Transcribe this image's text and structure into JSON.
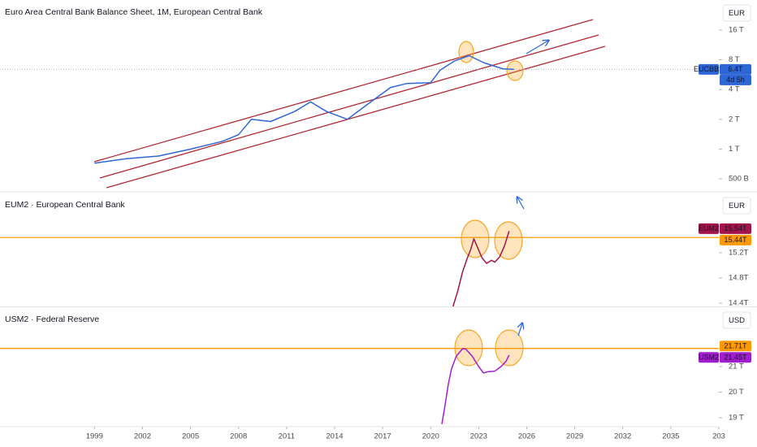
{
  "time_axis": {
    "xlim": [
      1993.1,
      2038
    ],
    "xticks": [
      1999,
      2002,
      2005,
      2008,
      2011,
      2014,
      2017,
      2020,
      2023,
      2026,
      2029,
      2032,
      2035,
      {
        "value": 2038,
        "label": "203"
      }
    ]
  },
  "chart_data": [
    {
      "type": "line",
      "title": "Euro Area Central Bank Balance Sheet, 1M, European Central Bank",
      "currency": "EUR",
      "log_scale": true,
      "ylim": [
        0.377,
        32.2
      ],
      "yticks": [
        {
          "value": 16,
          "label": "16 T"
        },
        {
          "value": 8,
          "label": "8 T"
        },
        {
          "value": 4,
          "label": "4 T"
        },
        {
          "value": 2,
          "label": "2 T"
        },
        {
          "value": 1,
          "label": "1 T"
        },
        {
          "value": 0.5,
          "label": "500 B"
        }
      ],
      "series": [
        {
          "name": "EUCBBS",
          "color": "#2f66d6",
          "x": [
            1999.0,
            2001.0,
            2003.0,
            2005.0,
            2007.0,
            2008.0,
            2008.8,
            2010.0,
            2011.5,
            2012.5,
            2013.5,
            2014.8,
            2016.0,
            2017.5,
            2018.5,
            2020.0,
            2020.6,
            2021.5,
            2022.4,
            2023.3,
            2024.5,
            2025.2
          ],
          "values": [
            0.72,
            0.8,
            0.85,
            1.0,
            1.2,
            1.4,
            2.0,
            1.9,
            2.4,
            3.0,
            2.4,
            2.0,
            2.8,
            4.2,
            4.6,
            4.7,
            6.3,
            7.8,
            8.8,
            7.5,
            6.5,
            6.4
          ],
          "last_label": "6.4T",
          "countdown": "4d 5h"
        }
      ]
    },
    {
      "type": "line",
      "title": "EUM2 · European Central Bank",
      "currency": "EUR",
      "log_scale": false,
      "ylim": [
        14.35,
        16.15
      ],
      "yticks": [
        {
          "value": 14.4,
          "label": "14.4T"
        },
        {
          "value": 14.8,
          "label": "14.8T"
        },
        {
          "value": 15.2,
          "label": "15.2T"
        }
      ],
      "reference_line": {
        "value": 15.44,
        "label": "15.44T",
        "color": "#ff9800"
      },
      "series": [
        {
          "name": "EUM2",
          "color": "#a3144d",
          "x": [
            2021.4,
            2021.7,
            2022.0,
            2022.3,
            2022.5,
            2022.7,
            2022.9,
            2023.2,
            2023.5,
            2023.8,
            2024.0,
            2024.3,
            2024.6,
            2024.9
          ],
          "values": [
            14.35,
            14.6,
            14.9,
            15.12,
            15.25,
            15.42,
            15.3,
            15.12,
            15.03,
            15.08,
            15.05,
            15.13,
            15.3,
            15.54
          ],
          "last_label": "15.54T"
        }
      ]
    },
    {
      "type": "line",
      "title": "USM2 · Federal Reserve",
      "currency": "USD",
      "log_scale": false,
      "ylim": [
        18.65,
        23.32
      ],
      "yticks": [
        {
          "value": 21,
          "label": "21 T"
        },
        {
          "value": 20,
          "label": "20 T"
        },
        {
          "value": 19,
          "label": "19 T"
        }
      ],
      "reference_line": {
        "value": 21.71,
        "label": "21.71T",
        "color": "#ff9800"
      },
      "series": [
        {
          "name": "USM2",
          "color": "#a21cd0",
          "x": [
            2020.7,
            2020.9,
            2021.1,
            2021.3,
            2021.6,
            2022.0,
            2022.2,
            2022.6,
            2023.0,
            2023.3,
            2023.6,
            2024.0,
            2024.4,
            2024.7,
            2024.9
          ],
          "values": [
            18.75,
            19.5,
            20.3,
            20.9,
            21.4,
            21.7,
            21.68,
            21.4,
            21.0,
            20.75,
            20.8,
            20.82,
            21.0,
            21.2,
            21.45
          ],
          "last_label": "21.45T"
        }
      ]
    }
  ]
}
